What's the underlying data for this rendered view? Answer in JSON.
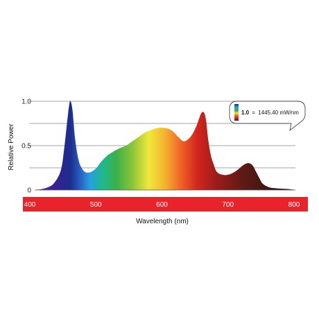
{
  "chart_data": {
    "type": "area",
    "title": "",
    "xlabel": "Wavelength (nm)",
    "ylabel": "Relative Power",
    "xlim": [
      400,
      800
    ],
    "ylim": [
      0,
      1.0
    ],
    "x_ticks": [
      "400",
      "500",
      "600",
      "700",
      "800"
    ],
    "y_ticks": [
      "0",
      "0.5",
      "1.0"
    ],
    "grid": true,
    "legend": {
      "placement": "top-right",
      "value_bold": "1.0",
      "equals": "=",
      "value_text": "1445.40 mW/nm"
    },
    "series": [
      {
        "x": [
          400,
          410,
          420,
          430,
          440,
          445,
          450,
          453,
          455,
          458,
          462,
          467,
          472,
          478,
          485,
          490,
          495,
          500,
          510,
          520,
          530,
          540,
          550,
          560,
          570,
          580,
          590,
          597,
          605,
          612,
          620,
          628,
          635,
          642,
          648,
          652,
          656,
          660,
          663,
          666,
          670,
          675,
          680,
          690,
          700,
          710,
          718,
          725,
          730,
          735,
          740,
          745,
          750,
          760,
          770,
          780,
          790,
          800
        ],
        "values": [
          0.0,
          0.01,
          0.03,
          0.08,
          0.22,
          0.45,
          0.78,
          0.96,
          1.0,
          0.9,
          0.58,
          0.35,
          0.25,
          0.2,
          0.2,
          0.22,
          0.25,
          0.3,
          0.38,
          0.43,
          0.47,
          0.5,
          0.55,
          0.6,
          0.65,
          0.68,
          0.7,
          0.7,
          0.69,
          0.66,
          0.6,
          0.55,
          0.57,
          0.63,
          0.72,
          0.8,
          0.87,
          0.87,
          0.78,
          0.58,
          0.4,
          0.28,
          0.2,
          0.17,
          0.18,
          0.22,
          0.27,
          0.3,
          0.3,
          0.27,
          0.2,
          0.13,
          0.07,
          0.03,
          0.02,
          0.015,
          0.01,
          0.0
        ]
      }
    ],
    "spectrum_colors": [
      {
        "nm": 400,
        "color": "#6a2e8a"
      },
      {
        "nm": 430,
        "color": "#3a1e96"
      },
      {
        "nm": 455,
        "color": "#1b2f8a"
      },
      {
        "nm": 470,
        "color": "#2a5fc0"
      },
      {
        "nm": 485,
        "color": "#27a0e0"
      },
      {
        "nm": 505,
        "color": "#1fb88a"
      },
      {
        "nm": 525,
        "color": "#3bb04a"
      },
      {
        "nm": 550,
        "color": "#8cc43a"
      },
      {
        "nm": 575,
        "color": "#f0e83a"
      },
      {
        "nm": 600,
        "color": "#f5b22e"
      },
      {
        "nm": 625,
        "color": "#ef6127"
      },
      {
        "nm": 650,
        "color": "#d2241e"
      },
      {
        "nm": 680,
        "color": "#991d1a"
      },
      {
        "nm": 720,
        "color": "#5e1a16"
      },
      {
        "nm": 760,
        "color": "#3c1612"
      },
      {
        "nm": 800,
        "color": "#2a100e"
      }
    ],
    "band_color": "#e9232b"
  }
}
